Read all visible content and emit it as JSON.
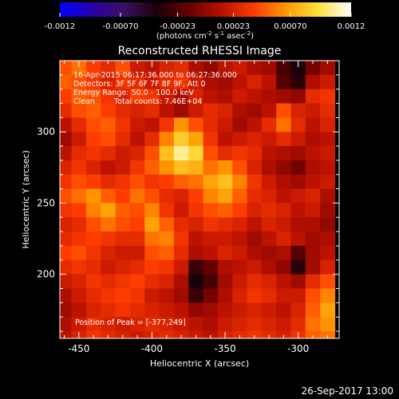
{
  "colorbar": {
    "tick_labels": [
      "-0.0012",
      "-0.00070",
      "-0.00023",
      "0.00023",
      "0.00070",
      "0.0012"
    ],
    "tick_values": [
      -0.0012,
      -0.0007,
      -0.00023,
      0.00023,
      0.0007,
      0.0012
    ],
    "range": [
      -0.0012,
      0.0012
    ],
    "unit_label_parts": [
      "(photons cm",
      "-2",
      " s",
      "-1",
      " asec",
      "-2",
      ")"
    ]
  },
  "title": "Reconstructed RHESSI Image",
  "annotations": {
    "line1": "16-Apr-2015 06:17:36.000 to 06:27:36.000",
    "line2": "Detectors: 3F 5F 6F 7F 8F 9F, Att 0",
    "line3": "Energy Range: 50.0 - 100.0 keV",
    "line4_method": "Clean",
    "line4_counts": "Total counts: 7.46E+04",
    "peak": "Position of Peak = [-377,249]"
  },
  "timestamp": "26-Sep-2017 13:00",
  "colors": {
    "background": "#000000",
    "text": "#ffffff",
    "colormap": [
      "#0000ff",
      "#2a00a8",
      "#3a1060",
      "#1a0008",
      "#6a0000",
      "#b81000",
      "#ff3c00",
      "#ff9a00",
      "#ffe040",
      "#ffffff"
    ]
  },
  "chart_data": {
    "type": "heatmap",
    "title": "Reconstructed RHESSI Image",
    "xlabel": "Heliocentric X (arcsec)",
    "ylabel": "Heliocentric Y (arcsec)",
    "xlim": [
      -463,
      -272
    ],
    "ylim": [
      155,
      350
    ],
    "x_ticks": [
      -450,
      -400,
      -350,
      -300
    ],
    "x_tick_labels": [
      "-450",
      "-400",
      "-350",
      "-300"
    ],
    "y_ticks": [
      200,
      250,
      300
    ],
    "y_tick_labels": [
      "200",
      "250",
      "300"
    ],
    "peak_position": [
      -377,
      249
    ],
    "colormap": "blue-purple-black-red-orange-yellow-white",
    "value_range": [
      -0.0012,
      0.0012
    ],
    "sample_grid": {
      "x_start": -460,
      "y_start": 345,
      "step": 10,
      "values": [
        [
          0.00045,
          0.00055,
          0.0004,
          0.0003,
          0.00045,
          0.0002,
          0.00015,
          0.00025,
          0.0003,
          0.0001,
          0.0,
          0.00015,
          0.0002,
          0.0001,
          5e-05,
          -0.00025,
          -0.0004,
          -0.0001,
          5e-05
        ],
        [
          0.0005,
          0.00045,
          0.00035,
          0.00025,
          0.00035,
          0.0003,
          0.0002,
          0.0003,
          0.00035,
          0.0002,
          0.0001,
          5e-05,
          0.00015,
          0.00025,
          0.00015,
          -0.0002,
          -0.00035,
          0.0001,
          0.0002
        ],
        [
          0.0004,
          0.0005,
          0.00045,
          0.00035,
          0.00025,
          0.0004,
          0.00035,
          0.0002,
          0.0001,
          0.00025,
          0.00015,
          0.0001,
          0.0002,
          0.00015,
          0.0001,
          5e-05,
          0.0,
          0.0003,
          0.00035
        ],
        [
          0.0003,
          0.00045,
          0.0005,
          0.0004,
          0.0003,
          0.00025,
          0.0003,
          0.00015,
          5e-05,
          0.0002,
          0.0003,
          0.00025,
          0.0001,
          5e-05,
          0.00015,
          0.00045,
          0.00025,
          0.0002,
          0.0003
        ],
        [
          0.00015,
          0.0003,
          0.00045,
          0.0005,
          0.00035,
          0.0002,
          0.00015,
          0.00035,
          0.00065,
          0.00045,
          0.0003,
          0.0002,
          5e-05,
          0.00015,
          0.0003,
          0.00055,
          0.0003,
          0.00015,
          0.00025
        ],
        [
          5e-05,
          0.0002,
          0.0004,
          0.00045,
          0.0003,
          0.00015,
          0.0003,
          0.0006,
          0.00085,
          0.0007,
          0.00035,
          0.00015,
          0.0002,
          0.00025,
          0.0002,
          0.0003,
          0.0002,
          0.0001,
          0.00015
        ],
        [
          0.00015,
          0.0003,
          0.00035,
          0.0003,
          0.0002,
          0.00025,
          0.00045,
          0.0008,
          0.00105,
          0.0009,
          0.00045,
          0.0003,
          0.00035,
          0.0003,
          0.00015,
          0.0001,
          5e-05,
          0.00015,
          0.0002
        ],
        [
          0.00025,
          0.00035,
          0.00025,
          0.00015,
          0.0002,
          0.00035,
          0.0005,
          0.00065,
          0.0008,
          0.00075,
          0.00055,
          0.00065,
          0.00045,
          0.00025,
          0.0001,
          0.0,
          -0.0001,
          0.0001,
          0.00015
        ],
        [
          0.00035,
          0.00045,
          0.0004,
          0.0003,
          0.00035,
          0.00045,
          0.00035,
          0.0004,
          0.0005,
          0.00055,
          0.0007,
          0.0008,
          0.0006,
          0.00035,
          0.0002,
          0.0001,
          5e-05,
          0.00015,
          0.0002
        ],
        [
          0.00045,
          0.00055,
          0.00065,
          0.0005,
          0.0004,
          0.00055,
          0.00045,
          0.0003,
          0.00025,
          0.0004,
          0.0006,
          0.0007,
          0.0005,
          0.0003,
          0.00025,
          0.00015,
          0.0002,
          0.00025,
          0.0001
        ],
        [
          0.00035,
          0.0004,
          0.0006,
          0.0007,
          0.0005,
          0.00045,
          0.0006,
          0.00035,
          0.0002,
          0.00035,
          0.00045,
          0.0005,
          0.0004,
          0.00025,
          0.0003,
          0.00025,
          0.00015,
          0.0002,
          5e-05
        ],
        [
          0.00025,
          0.0003,
          0.00045,
          0.00055,
          0.00045,
          0.0004,
          0.0007,
          0.0005,
          0.0003,
          0.00025,
          0.00035,
          0.0003,
          0.00025,
          0.00015,
          0.00025,
          0.0002,
          0.0001,
          0.0001,
          0.0
        ],
        [
          0.0003,
          0.00035,
          0.0004,
          0.00035,
          0.0003,
          0.0003,
          0.00055,
          0.0006,
          0.00035,
          0.00015,
          0.0002,
          0.0002,
          0.00015,
          5e-05,
          0.00015,
          0.00025,
          0.00015,
          5e-05,
          0.0001
        ],
        [
          0.0004,
          0.00045,
          0.00035,
          0.00025,
          0.0002,
          0.0002,
          0.00045,
          0.0005,
          0.0003,
          0.0001,
          0.00015,
          0.00025,
          0.0002,
          0.0001,
          5e-05,
          0.0001,
          -0.0002,
          5e-05,
          0.00015
        ],
        [
          0.0003,
          0.00035,
          0.0003,
          0.0002,
          0.00025,
          0.0003,
          0.0004,
          0.00035,
          0.0002,
          -0.0003,
          -0.00015,
          0.0001,
          0.00015,
          0.0002,
          0.0001,
          0.0,
          -0.00035,
          5e-05,
          0.00025
        ],
        [
          0.0002,
          0.00025,
          0.00035,
          0.0003,
          0.00035,
          0.0004,
          0.0003,
          0.00025,
          0.0001,
          -0.0004,
          -0.00025,
          5e-05,
          0.0002,
          0.0003,
          0.00025,
          0.00015,
          5e-05,
          0.0003,
          0.00045
        ],
        [
          0.0001,
          0.0002,
          0.0003,
          0.00035,
          0.0004,
          0.00035,
          0.0002,
          0.00015,
          5e-05,
          -0.0003,
          -0.0001,
          0.0001,
          0.00025,
          0.00035,
          0.0003,
          0.0002,
          0.0002,
          0.00045,
          0.0006
        ],
        [
          5e-05,
          0.00015,
          0.00025,
          0.0003,
          0.00035,
          0.0003,
          0.00025,
          0.0002,
          0.00015,
          0.0,
          5e-05,
          0.00015,
          0.0002,
          0.00025,
          0.0002,
          0.00015,
          0.00025,
          0.0005,
          0.0007
        ],
        [
          0.0001,
          0.0002,
          0.0003,
          0.00025,
          0.0002,
          0.00025,
          0.0003,
          0.00025,
          0.0002,
          0.00015,
          0.0001,
          0.0002,
          0.00025,
          0.0003,
          0.00025,
          0.0002,
          0.0003,
          0.00055,
          0.00065
        ],
        [
          0.00015,
          0.00025,
          0.00035,
          0.0003,
          0.00025,
          0.0002,
          0.00025,
          0.0003,
          0.00025,
          0.0002,
          0.00015,
          0.00025,
          0.0003,
          0.00035,
          0.0003,
          0.00025,
          0.00035,
          0.0005,
          0.00055
        ]
      ]
    }
  }
}
